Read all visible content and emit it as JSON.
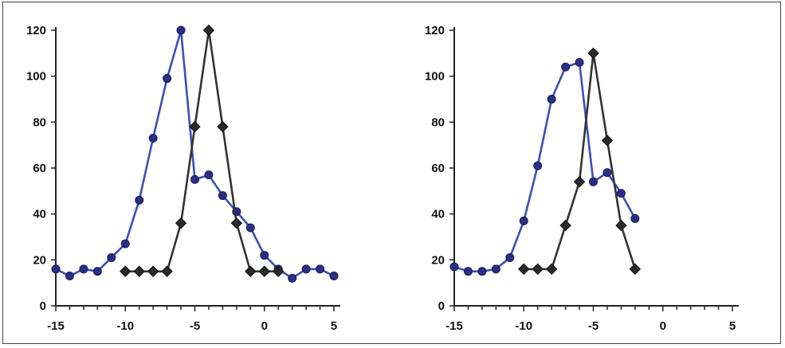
{
  "chart_data": [
    {
      "type": "line",
      "xlim": [
        -15,
        5
      ],
      "ylim": [
        0,
        120
      ],
      "xticks": [
        -15,
        -10,
        -5,
        0,
        5
      ],
      "yticks": [
        0,
        20,
        40,
        60,
        80,
        100,
        120
      ],
      "x_tick_labels": [
        "-15",
        "-10",
        "-5",
        "0",
        "5"
      ],
      "y_tick_labels": [
        "0",
        "20",
        "40",
        "60",
        "80",
        "100",
        "120"
      ],
      "grid": false,
      "series": [
        {
          "marker": "circle",
          "color": "#3b4fb5",
          "marker_color": "#2a2f86",
          "x": [
            -15,
            -14,
            -13,
            -12,
            -11,
            -10,
            -9,
            -8,
            -7,
            -6,
            -5,
            -4,
            -3,
            -2,
            -1,
            0,
            1,
            2,
            3,
            4,
            5
          ],
          "values": [
            16,
            13,
            16,
            15,
            21,
            27,
            46,
            73,
            99,
            120,
            55,
            57,
            48,
            41,
            34,
            22,
            16,
            12,
            16,
            16,
            13
          ]
        },
        {
          "marker": "diamond",
          "color": "#333333",
          "marker_color": "#2a2a2a",
          "x": [
            -10,
            -9,
            -8,
            -7,
            -6,
            -5,
            -4,
            -3,
            -2,
            -1,
            0,
            1
          ],
          "values": [
            15,
            15,
            15,
            15,
            36,
            78,
            120,
            78,
            36,
            15,
            15,
            15
          ]
        }
      ]
    },
    {
      "type": "line",
      "xlim": [
        -15,
        5
      ],
      "ylim": [
        0,
        120
      ],
      "xticks": [
        -15,
        -10,
        -5,
        0,
        5
      ],
      "yticks": [
        0,
        20,
        40,
        60,
        80,
        100,
        120
      ],
      "x_tick_labels": [
        "-15",
        "-10",
        "-5",
        "0",
        "5"
      ],
      "y_tick_labels": [
        "0",
        "20",
        "40",
        "60",
        "80",
        "100",
        "120"
      ],
      "grid": false,
      "series": [
        {
          "marker": "circle",
          "color": "#3b4fb5",
          "marker_color": "#2a2f86",
          "x": [
            -15,
            -14,
            -13,
            -12,
            -11,
            -10,
            -9,
            -8,
            -7,
            -6,
            -5,
            -4,
            -3,
            -2
          ],
          "values": [
            17,
            15,
            15,
            16,
            21,
            37,
            61,
            90,
            104,
            106,
            54,
            58,
            49,
            38
          ]
        },
        {
          "marker": "diamond",
          "color": "#333333",
          "marker_color": "#2a2a2a",
          "x": [
            -10,
            -9,
            -8,
            -7,
            -6,
            -5,
            -4,
            -3,
            -2
          ],
          "values": [
            16,
            16,
            16,
            35,
            54,
            110,
            72,
            35,
            16
          ]
        }
      ]
    }
  ]
}
